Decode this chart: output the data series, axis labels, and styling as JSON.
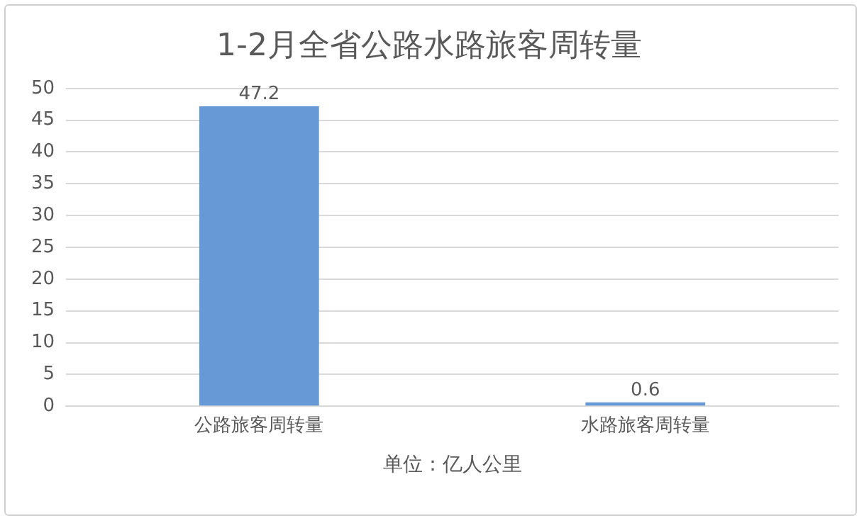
{
  "chart_data": {
    "type": "bar",
    "title": "1-2月全省公路水路旅客周转量",
    "xlabel": "单位：亿人公里",
    "categories": [
      "公路旅客周转量",
      "水路旅客周转量"
    ],
    "values": [
      47.2,
      0.6
    ],
    "color": "#6699d6",
    "ylim": [
      0,
      50
    ],
    "yticks": [
      0,
      5,
      10,
      15,
      20,
      25,
      30,
      35,
      40,
      45,
      50
    ],
    "grid": "y",
    "data_labels": true
  }
}
